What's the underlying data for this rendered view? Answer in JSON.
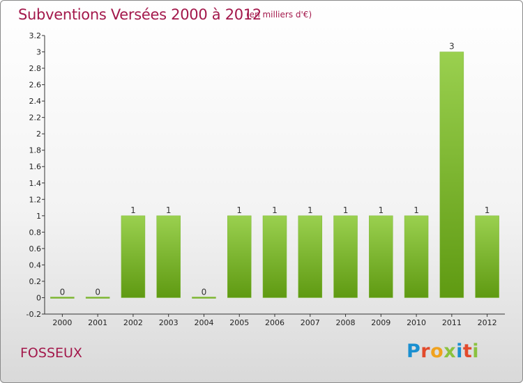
{
  "header": {
    "title": "Subventions Versées 2000 à 2012",
    "unit_note": "(en milliers d'€)"
  },
  "footer": {
    "commune": "FOSSEUX",
    "logo_text": "Proxiti"
  },
  "colors": {
    "title": "#a3184b",
    "bar_light": "#9ad04f",
    "bar_dark": "#5f9a12",
    "logo_letters": [
      "#1a8fd0",
      "#e24a2c",
      "#f0a21e",
      "#8ac23f",
      "#1a8fd0",
      "#e24a2c",
      "#8ac23f"
    ]
  },
  "chart_data": {
    "type": "bar",
    "title": "Subventions Versées 2000 à 2012",
    "subtitle": "(en milliers d'€)",
    "xlabel": "",
    "ylabel": "",
    "categories": [
      "2000",
      "2001",
      "2002",
      "2003",
      "2004",
      "2005",
      "2006",
      "2007",
      "2008",
      "2009",
      "2010",
      "2011",
      "2012"
    ],
    "values": [
      0,
      0,
      1,
      1,
      0,
      1,
      1,
      1,
      1,
      1,
      1,
      3,
      1
    ],
    "data_labels": [
      "0",
      "0",
      "1",
      "1",
      "0",
      "1",
      "1",
      "1",
      "1",
      "1",
      "1",
      "3",
      "1"
    ],
    "ylim": [
      -0.2,
      3.2
    ],
    "yticks": [
      "-0.2",
      "0",
      "0.2",
      "0.4",
      "0.6",
      "0.8",
      "1",
      "1.2",
      "1.4",
      "1.6",
      "1.8",
      "2",
      "2.2",
      "2.4",
      "2.6",
      "2.8",
      "3",
      "3.2"
    ],
    "ytick_values": [
      -0.2,
      0,
      0.2,
      0.4,
      0.6,
      0.8,
      1,
      1.2,
      1.4,
      1.6,
      1.8,
      2,
      2.2,
      2.4,
      2.6,
      2.8,
      3,
      3.2
    ],
    "grid": false,
    "legend": "none"
  }
}
